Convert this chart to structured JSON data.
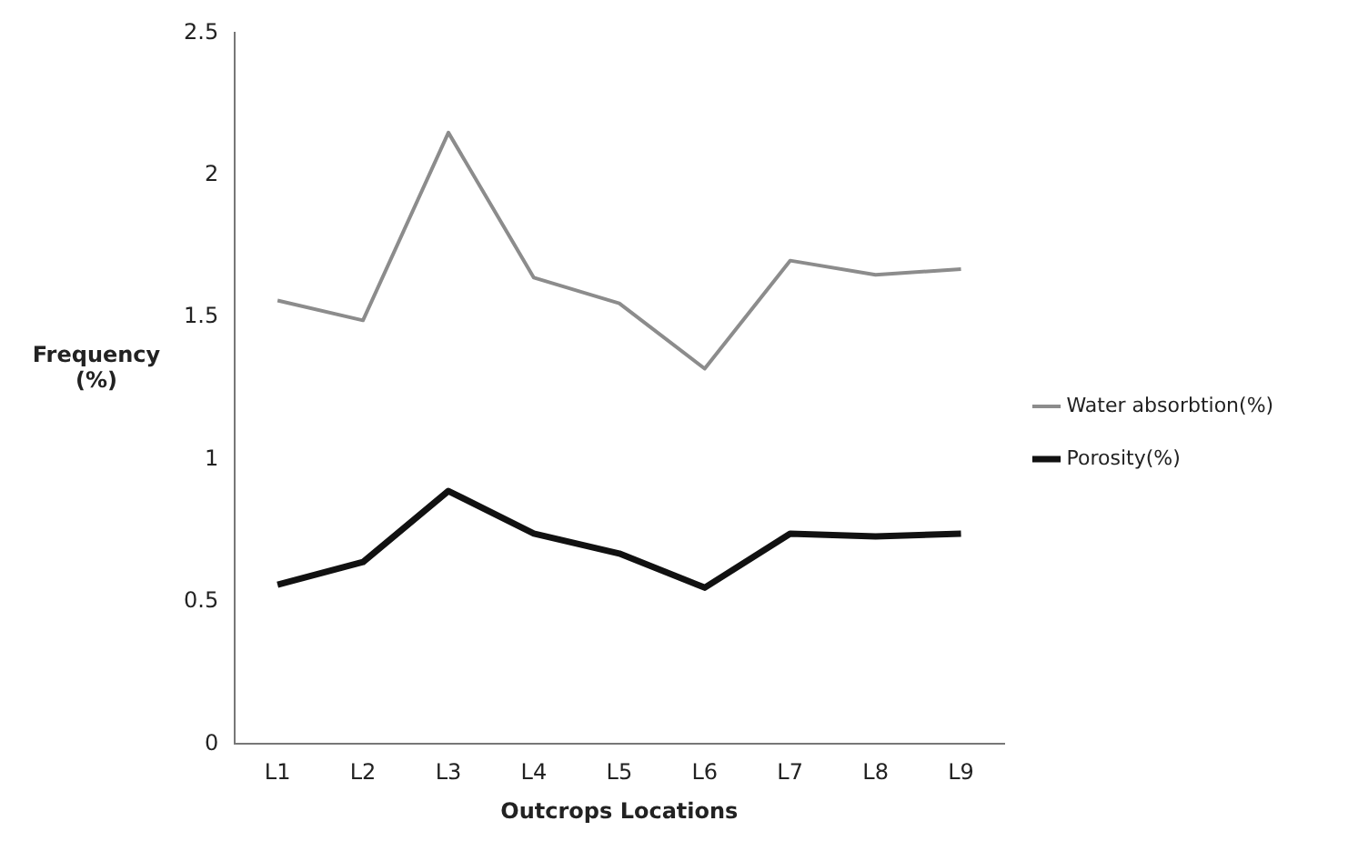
{
  "chart_data": {
    "type": "line",
    "xlabel": "Outcrops Locations",
    "ylabel": "Frequency (%)",
    "categories": [
      "L1",
      "L2",
      "L3",
      "L4",
      "L5",
      "L6",
      "L7",
      "L8",
      "L9"
    ],
    "series": [
      {
        "name": "Water absorbtion(%)",
        "color": "#8c8c8c",
        "values": [
          1.56,
          1.49,
          2.15,
          1.64,
          1.55,
          1.32,
          1.7,
          1.65,
          1.67
        ]
      },
      {
        "name": "Porosity(%)",
        "color": "#111111",
        "values": [
          0.56,
          0.64,
          0.89,
          0.74,
          0.67,
          0.55,
          0.74,
          0.73,
          0.74
        ]
      }
    ],
    "ylim": [
      0,
      2.5
    ],
    "yticks": [
      0,
      0.5,
      1,
      1.5,
      2,
      2.5
    ],
    "grid": false,
    "legend": "right",
    "marker": "none",
    "line_style": "solid"
  }
}
